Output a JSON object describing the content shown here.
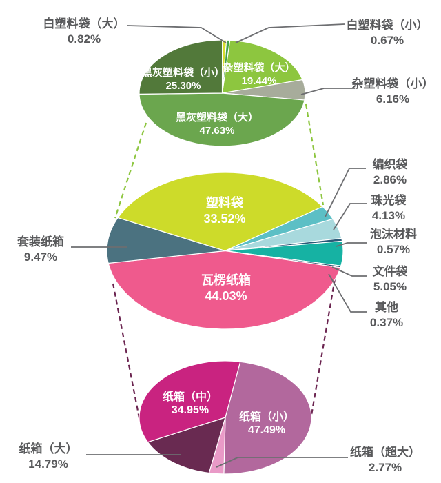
{
  "colors": {
    "background": "#ffffff",
    "label_text": "#58595b",
    "inside_label_text": "#ffffff",
    "leader_line": "#6d6e71",
    "connector_top": "#8dc63f",
    "connector_bottom": "#6b2450",
    "slice_border": "#ffffff"
  },
  "chart_data": {
    "type": "pie",
    "title": "",
    "legend": "none",
    "pies": [
      {
        "id": "plastic-bag-detail",
        "position": "top",
        "start_angle": 0,
        "slices": [
          {
            "id": "white-plastic-bag-large",
            "label": "白塑料袋（大）",
            "value": 0.82,
            "pct": "0.82%",
            "color": "#d6dd2b"
          },
          {
            "id": "white-plastic-bag-small",
            "label": "白塑料袋（小）",
            "value": 0.67,
            "pct": "0.67%",
            "color": "#43a14a"
          },
          {
            "id": "mixed-plastic-bag-large",
            "label": "杂塑料袋（大）",
            "value": 19.44,
            "pct": "19.44%",
            "color": "#8dc63f"
          },
          {
            "id": "mixed-plastic-bag-small",
            "label": "杂塑料袋（小）",
            "value": 6.16,
            "pct": "6.16%",
            "color": "#a7ac9b"
          },
          {
            "id": "dark-plastic-bag-large",
            "label": "黑灰塑料袋（大）",
            "value": 47.63,
            "pct": "47.63%",
            "color": "#6ba64e"
          },
          {
            "id": "dark-plastic-bag-small",
            "label": "黑灰塑料袋（小）",
            "value": 25.3,
            "pct": "25.30%",
            "color": "#52793a"
          }
        ]
      },
      {
        "id": "packaging-overall",
        "position": "middle",
        "start_angle": 295,
        "slices": [
          {
            "id": "plastic-bag",
            "label": "塑料袋",
            "value": 33.52,
            "pct": "33.52%",
            "color": "#cddb2a"
          },
          {
            "id": "woven-bag",
            "label": "编织袋",
            "value": 2.86,
            "pct": "2.86%",
            "color": "#5cbfc5"
          },
          {
            "id": "pearl-bag",
            "label": "珠光袋",
            "value": 4.13,
            "pct": "4.13%",
            "color": "#a8d9dd"
          },
          {
            "id": "foam-material",
            "label": "泡沫材料",
            "value": 0.57,
            "pct": "0.57%",
            "color": "#2b5a78"
          },
          {
            "id": "document-bag",
            "label": "文件袋",
            "value": 5.05,
            "pct": "5.05%",
            "color": "#16b2a3"
          },
          {
            "id": "other",
            "label": "其他",
            "value": 0.37,
            "pct": "0.37%",
            "color": "#2b5270"
          },
          {
            "id": "corrugated-carton",
            "label": "瓦楞纸箱",
            "value": 44.03,
            "pct": "44.03%",
            "color": "#ef5a8d"
          },
          {
            "id": "set-carton",
            "label": "套装纸箱",
            "value": 9.47,
            "pct": "9.47%",
            "color": "#4b7280"
          }
        ]
      },
      {
        "id": "carton-size-detail",
        "position": "bottom",
        "start_angle": 10,
        "slices": [
          {
            "id": "carton-small",
            "label": "纸箱（小）",
            "value": 47.49,
            "pct": "47.49%",
            "color": "#b2689d"
          },
          {
            "id": "carton-xlarge",
            "label": "纸箱（超大）",
            "value": 2.77,
            "pct": "2.77%",
            "color": "#e99ac7"
          },
          {
            "id": "carton-large",
            "label": "纸箱（大）",
            "value": 14.79,
            "pct": "14.79%",
            "color": "#692a51"
          },
          {
            "id": "carton-medium",
            "label": "纸箱（中）",
            "value": 34.95,
            "pct": "34.95%",
            "color": "#c92380"
          }
        ]
      }
    ]
  }
}
